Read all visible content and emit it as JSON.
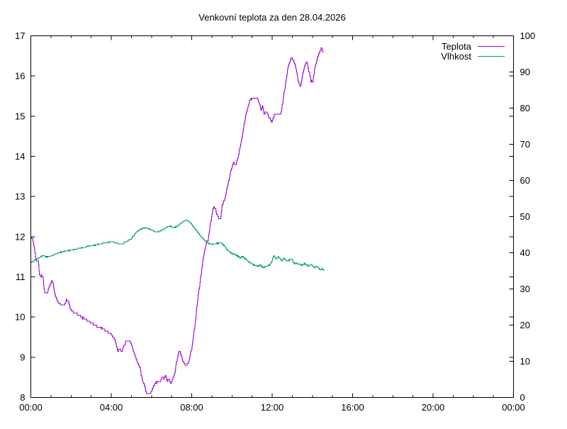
{
  "title": "Venkovní teplota za den 28.04.2026",
  "colors": {
    "background": "#ffffff",
    "axis": "#000000",
    "text": "#000000",
    "teplota": "#9400d3",
    "vlhkost": "#009e73"
  },
  "legend": {
    "position": "top-right-inside",
    "entries": [
      {
        "label": "Teplota",
        "color": "#9400d3"
      },
      {
        "label": "Vlhkost",
        "color": "#009e73"
      }
    ]
  },
  "axes": {
    "x": {
      "range_hours": [
        0,
        24
      ],
      "major_tick_hours": [
        0,
        4,
        8,
        12,
        16,
        20,
        24
      ],
      "minor_tick_every_hours": 1,
      "tick_labels": [
        "00:00",
        "04:00",
        "08:00",
        "12:00",
        "16:00",
        "20:00",
        "00:00"
      ]
    },
    "y_left": {
      "range": [
        8,
        17
      ],
      "tick_step": 1,
      "tick_labels": [
        "8",
        "9",
        "10",
        "11",
        "12",
        "13",
        "14",
        "15",
        "16",
        "17"
      ]
    },
    "y_right": {
      "range": [
        0,
        100
      ],
      "tick_step": 10,
      "tick_labels": [
        "0",
        "10",
        "20",
        "30",
        "40",
        "50",
        "60",
        "70",
        "80",
        "90",
        "100"
      ]
    }
  },
  "chart_data": {
    "type": "line",
    "title": "Venkovní teplota za den 28.04.2026",
    "x_unit": "time_of_day_hours",
    "grid": false,
    "legend_position": "top-right",
    "x_range_hours": [
      0,
      24
    ],
    "y_left_range": [
      8,
      17
    ],
    "y_right_range": [
      0,
      100
    ],
    "series": [
      {
        "name": "Teplota",
        "axis": "left",
        "units": "°C",
        "color": "#9400d3",
        "style": "steps",
        "quantize": 0.05,
        "noise": 0.02,
        "seed": 42,
        "points": [
          [
            0.0,
            11.95
          ],
          [
            0.06,
            12.02
          ],
          [
            0.15,
            11.75
          ],
          [
            0.25,
            11.45
          ],
          [
            0.36,
            11.38
          ],
          [
            0.42,
            11.05
          ],
          [
            0.6,
            11.0
          ],
          [
            0.68,
            10.62
          ],
          [
            0.8,
            10.6
          ],
          [
            0.92,
            10.75
          ],
          [
            1.02,
            10.9
          ],
          [
            1.08,
            10.88
          ],
          [
            1.18,
            10.6
          ],
          [
            1.3,
            10.4
          ],
          [
            1.5,
            10.3
          ],
          [
            1.68,
            10.3
          ],
          [
            1.76,
            10.42
          ],
          [
            1.86,
            10.38
          ],
          [
            1.98,
            10.17
          ],
          [
            2.2,
            10.1
          ],
          [
            2.5,
            10.0
          ],
          [
            2.8,
            9.92
          ],
          [
            3.1,
            9.82
          ],
          [
            3.4,
            9.75
          ],
          [
            3.7,
            9.67
          ],
          [
            3.98,
            9.57
          ],
          [
            4.08,
            9.5
          ],
          [
            4.18,
            9.42
          ],
          [
            4.32,
            9.16
          ],
          [
            4.42,
            9.22
          ],
          [
            4.52,
            9.15
          ],
          [
            4.7,
            9.38
          ],
          [
            4.88,
            9.42
          ],
          [
            5.0,
            9.33
          ],
          [
            5.15,
            9.07
          ],
          [
            5.3,
            8.86
          ],
          [
            5.42,
            8.74
          ],
          [
            5.55,
            8.4
          ],
          [
            5.65,
            8.28
          ],
          [
            5.74,
            8.1
          ],
          [
            5.93,
            8.1
          ],
          [
            6.02,
            8.17
          ],
          [
            6.1,
            8.28
          ],
          [
            6.2,
            8.37
          ],
          [
            6.42,
            8.4
          ],
          [
            6.52,
            8.52
          ],
          [
            6.6,
            8.46
          ],
          [
            6.68,
            8.55
          ],
          [
            6.78,
            8.4
          ],
          [
            6.86,
            8.48
          ],
          [
            6.95,
            8.34
          ],
          [
            7.05,
            8.46
          ],
          [
            7.15,
            8.6
          ],
          [
            7.25,
            8.9
          ],
          [
            7.35,
            9.12
          ],
          [
            7.42,
            9.15
          ],
          [
            7.55,
            8.92
          ],
          [
            7.65,
            8.83
          ],
          [
            7.75,
            8.8
          ],
          [
            7.85,
            8.9
          ],
          [
            7.95,
            9.12
          ],
          [
            8.05,
            9.4
          ],
          [
            8.15,
            9.8
          ],
          [
            8.3,
            10.45
          ],
          [
            8.45,
            11.05
          ],
          [
            8.6,
            11.55
          ],
          [
            8.72,
            11.85
          ],
          [
            8.8,
            11.92
          ],
          [
            8.92,
            12.3
          ],
          [
            9.02,
            12.62
          ],
          [
            9.1,
            12.75
          ],
          [
            9.18,
            12.68
          ],
          [
            9.28,
            12.5
          ],
          [
            9.42,
            12.44
          ],
          [
            9.52,
            12.8
          ],
          [
            9.65,
            12.95
          ],
          [
            9.8,
            13.3
          ],
          [
            9.95,
            13.65
          ],
          [
            10.08,
            13.85
          ],
          [
            10.18,
            13.77
          ],
          [
            10.32,
            14.02
          ],
          [
            10.45,
            14.35
          ],
          [
            10.6,
            14.8
          ],
          [
            10.75,
            15.15
          ],
          [
            10.88,
            15.4
          ],
          [
            11.0,
            15.45
          ],
          [
            11.25,
            15.45
          ],
          [
            11.38,
            15.3
          ],
          [
            11.45,
            15.15
          ],
          [
            11.52,
            15.25
          ],
          [
            11.6,
            15.06
          ],
          [
            11.72,
            15.12
          ],
          [
            11.85,
            14.95
          ],
          [
            11.98,
            14.85
          ],
          [
            12.1,
            15.04
          ],
          [
            12.42,
            15.04
          ],
          [
            12.55,
            15.45
          ],
          [
            12.68,
            15.9
          ],
          [
            12.82,
            16.3
          ],
          [
            12.95,
            16.45
          ],
          [
            13.05,
            16.4
          ],
          [
            13.15,
            16.25
          ],
          [
            13.28,
            15.9
          ],
          [
            13.4,
            15.75
          ],
          [
            13.52,
            16.05
          ],
          [
            13.63,
            16.3
          ],
          [
            13.72,
            16.36
          ],
          [
            13.82,
            16.12
          ],
          [
            13.92,
            15.88
          ],
          [
            14.02,
            15.86
          ],
          [
            14.12,
            16.2
          ],
          [
            14.25,
            16.45
          ],
          [
            14.38,
            16.62
          ],
          [
            14.46,
            16.7
          ],
          [
            14.52,
            16.58
          ],
          [
            14.58,
            16.62
          ]
        ]
      },
      {
        "name": "Vlhkost",
        "axis": "right",
        "units": "%",
        "color": "#009e73",
        "style": "steps",
        "quantize": 0.25,
        "noise": 0.15,
        "noise_late": 0.35,
        "noise_late_from_hour": 9.5,
        "seed": 7,
        "points": [
          [
            0.0,
            37.3
          ],
          [
            0.2,
            38.0
          ],
          [
            0.4,
            38.6
          ],
          [
            0.6,
            39.3
          ],
          [
            0.75,
            38.9
          ],
          [
            0.9,
            38.9
          ],
          [
            1.1,
            39.4
          ],
          [
            1.4,
            40.0
          ],
          [
            1.7,
            40.4
          ],
          [
            2.0,
            40.7
          ],
          [
            2.4,
            41.2
          ],
          [
            2.8,
            41.8
          ],
          [
            3.2,
            42.2
          ],
          [
            3.6,
            42.7
          ],
          [
            4.0,
            43.0
          ],
          [
            4.3,
            42.6
          ],
          [
            4.55,
            42.5
          ],
          [
            4.8,
            43.2
          ],
          [
            5.0,
            44.0
          ],
          [
            5.2,
            45.4
          ],
          [
            5.4,
            46.4
          ],
          [
            5.6,
            46.9
          ],
          [
            5.8,
            46.8
          ],
          [
            6.0,
            46.3
          ],
          [
            6.2,
            45.8
          ],
          [
            6.4,
            45.9
          ],
          [
            6.6,
            46.5
          ],
          [
            6.8,
            47.2
          ],
          [
            6.95,
            47.4
          ],
          [
            7.05,
            47.0
          ],
          [
            7.2,
            47.1
          ],
          [
            7.4,
            47.9
          ],
          [
            7.6,
            48.7
          ],
          [
            7.75,
            49.1
          ],
          [
            7.9,
            48.4
          ],
          [
            8.05,
            47.4
          ],
          [
            8.2,
            46.4
          ],
          [
            8.4,
            44.9
          ],
          [
            8.6,
            43.6
          ],
          [
            8.8,
            42.7
          ],
          [
            9.0,
            42.4
          ],
          [
            9.2,
            42.6
          ],
          [
            9.45,
            42.8
          ],
          [
            9.6,
            42.0
          ],
          [
            9.8,
            40.6
          ],
          [
            10.0,
            39.9
          ],
          [
            10.2,
            39.3
          ],
          [
            10.4,
            38.6
          ],
          [
            10.55,
            38.9
          ],
          [
            10.7,
            38.1
          ],
          [
            10.9,
            37.2
          ],
          [
            11.1,
            36.6
          ],
          [
            11.25,
            36.3
          ],
          [
            11.4,
            36.6
          ],
          [
            11.55,
            35.9
          ],
          [
            11.7,
            36.3
          ],
          [
            11.85,
            36.6
          ],
          [
            11.98,
            37.5
          ],
          [
            12.08,
            39.4
          ],
          [
            12.18,
            38.2
          ],
          [
            12.3,
            38.9
          ],
          [
            12.45,
            37.8
          ],
          [
            12.6,
            38.4
          ],
          [
            12.75,
            37.7
          ],
          [
            12.95,
            38.2
          ],
          [
            13.1,
            37.2
          ],
          [
            13.3,
            36.9
          ],
          [
            13.48,
            36.6
          ],
          [
            13.62,
            37.1
          ],
          [
            13.78,
            36.3
          ],
          [
            13.92,
            36.8
          ],
          [
            14.08,
            35.9
          ],
          [
            14.22,
            36.2
          ],
          [
            14.38,
            35.3
          ],
          [
            14.5,
            35.6
          ],
          [
            14.58,
            35.2
          ]
        ]
      }
    ]
  }
}
